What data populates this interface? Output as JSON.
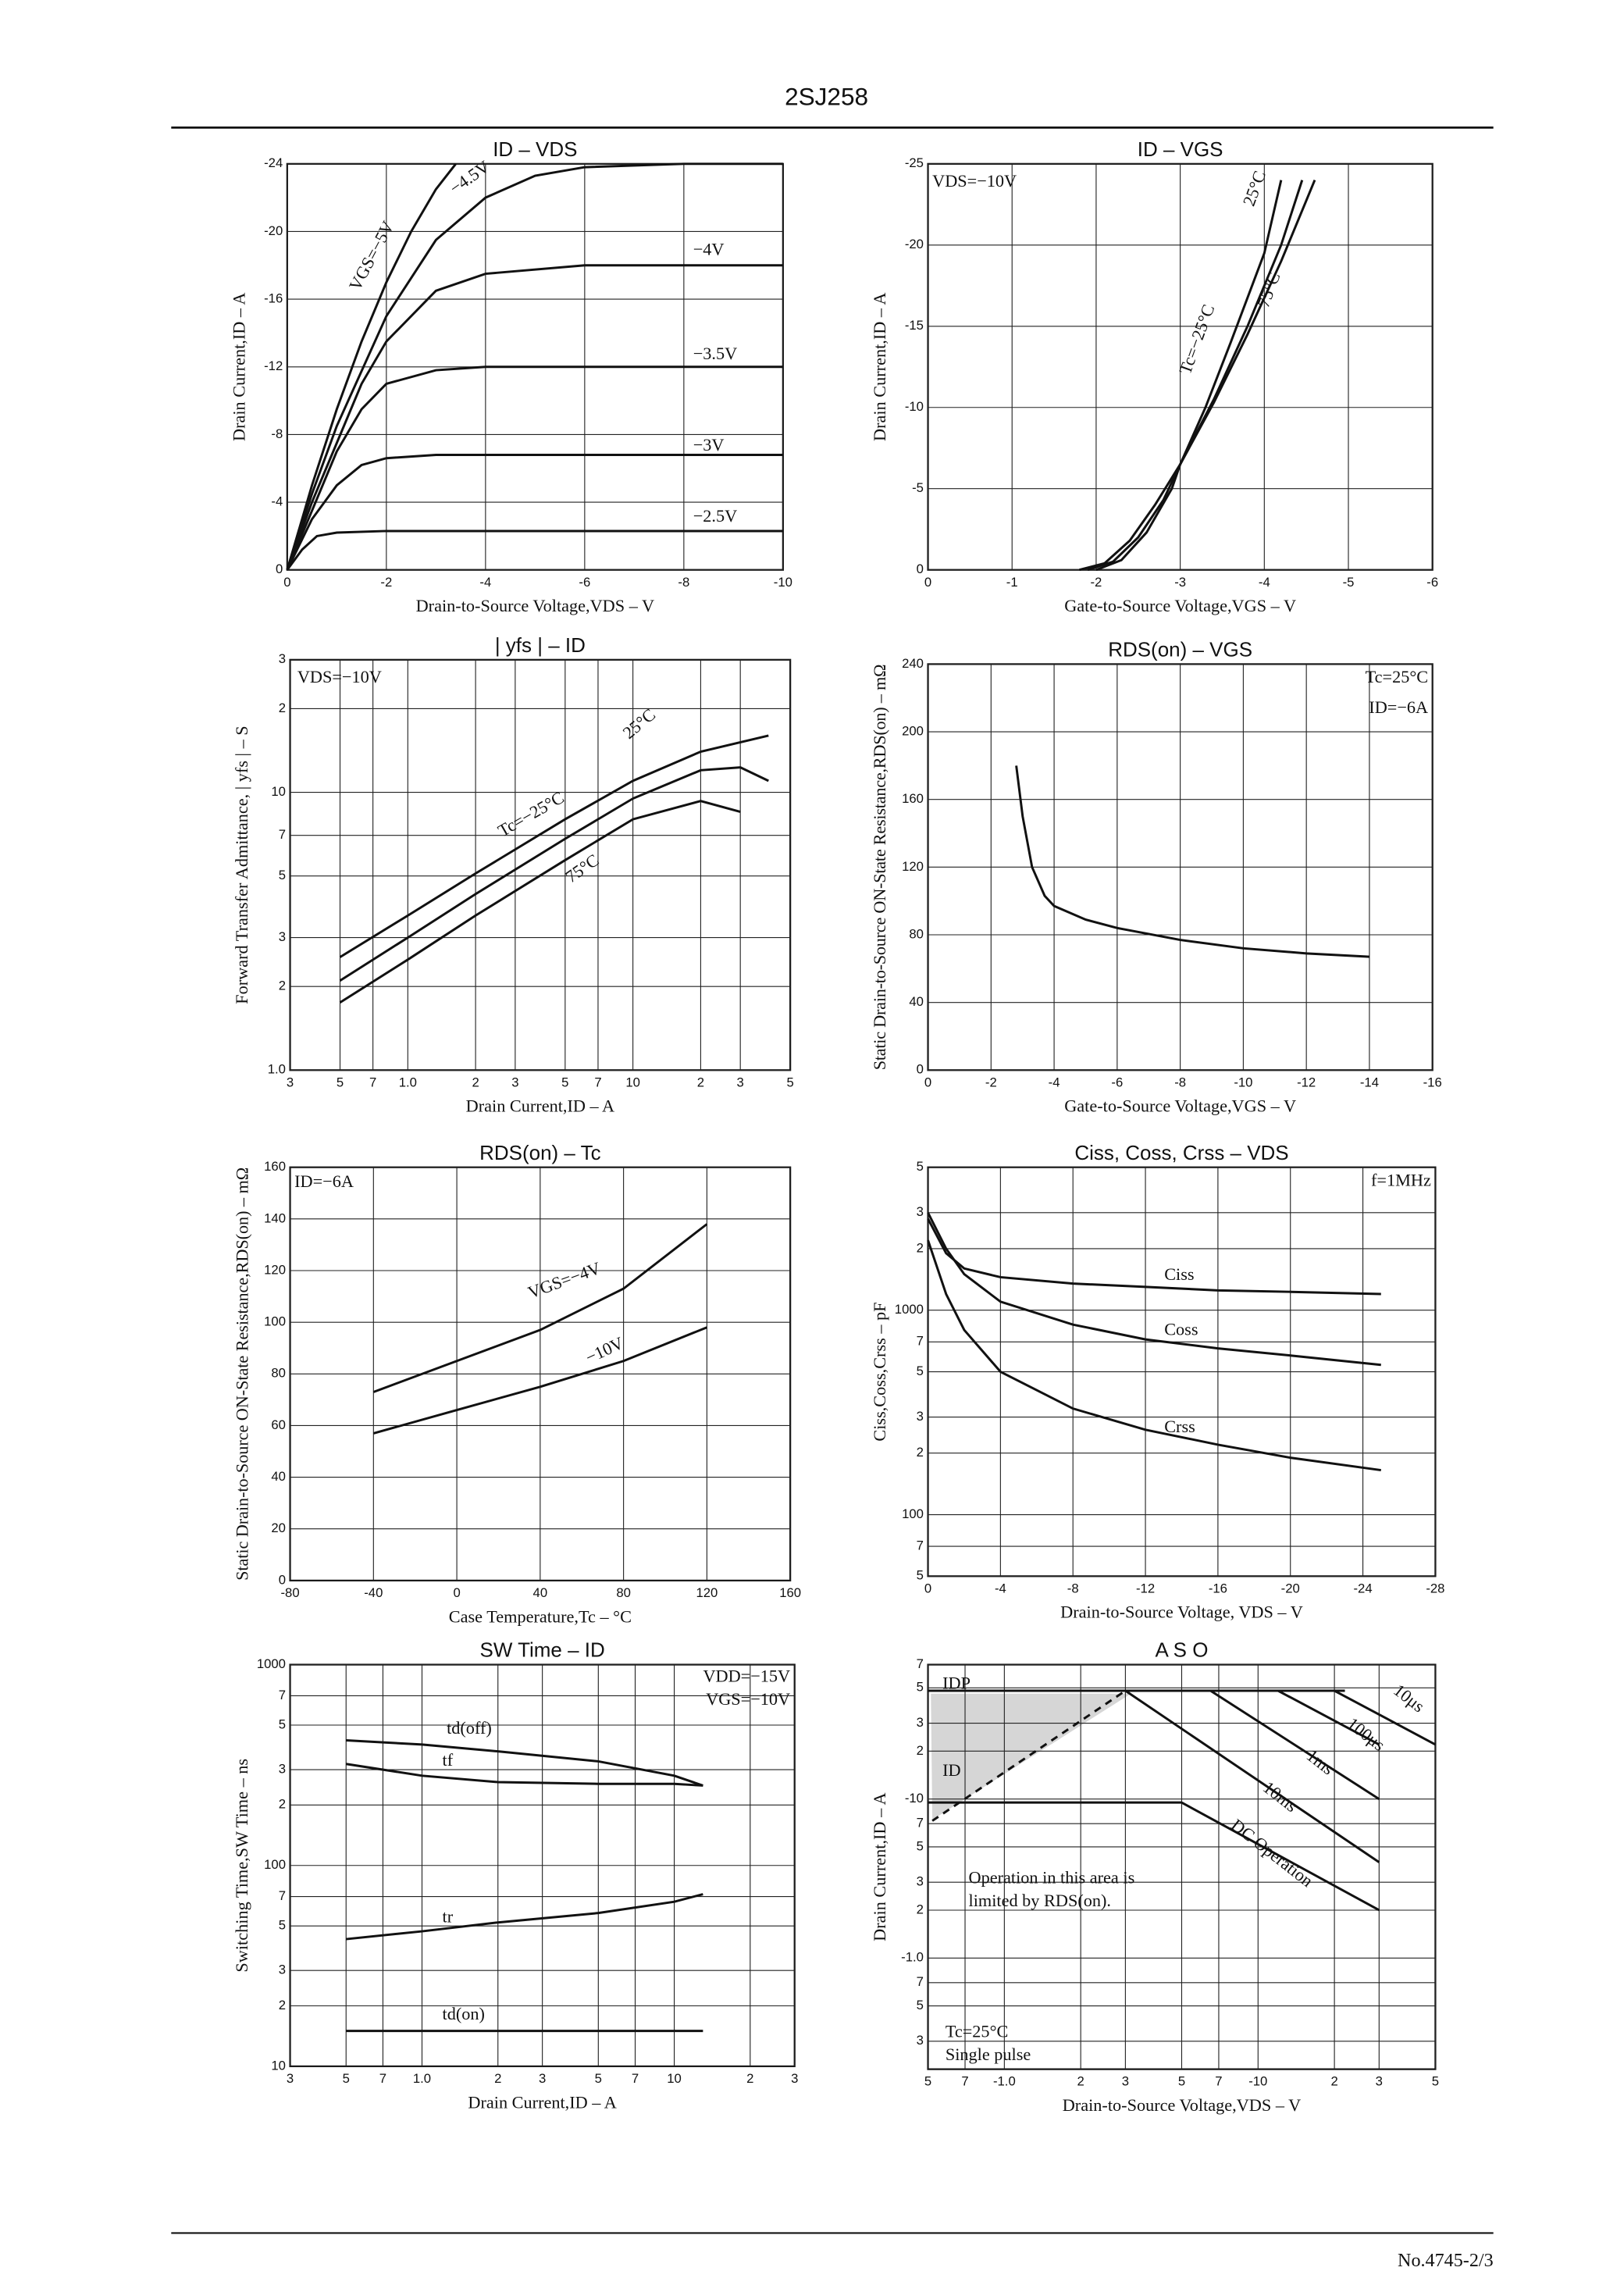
{
  "header": {
    "title": "2SJ258"
  },
  "footer": {
    "text": "No.4745-2/3"
  },
  "chart_data": [
    {
      "type": "line",
      "title": "ID – VDS",
      "xlabel": "Drain-to-Source Voltage,VDS – V",
      "ylabel": "Drain Current,ID – A",
      "color": "#111111",
      "grid": true,
      "xlim": [
        0,
        -10
      ],
      "xticks": [
        0,
        -2,
        -4,
        -6,
        -8,
        -10
      ],
      "ylim": [
        0,
        -24
      ],
      "yticks": [
        0,
        -4,
        -8,
        -12,
        -16,
        -20,
        -24
      ],
      "series": [
        {
          "name": "VGS=−5V",
          "x": [
            0,
            -0.5,
            -1,
            -1.5,
            -2,
            -2.5,
            -3,
            -3.4
          ],
          "values": [
            0,
            -5,
            -9.5,
            -13.5,
            -17,
            -20,
            -22.5,
            -24
          ]
        },
        {
          "name": "−4.5V",
          "x": [
            0,
            -0.5,
            -1,
            -2,
            -3,
            -4,
            -5,
            -6,
            -8,
            -10
          ],
          "values": [
            0,
            -4.5,
            -8.5,
            -15,
            -19.5,
            -22,
            -23.3,
            -23.8,
            -24,
            -24
          ]
        },
        {
          "name": "−4V",
          "x": [
            0,
            -0.5,
            -1,
            -1.5,
            -2,
            -3,
            -4,
            -6,
            -10
          ],
          "values": [
            0,
            -4,
            -7.5,
            -11,
            -13.5,
            -16.5,
            -17.5,
            -18,
            -18
          ]
        },
        {
          "name": "−3.5V",
          "x": [
            0,
            -0.5,
            -1,
            -1.5,
            -2,
            -3,
            -4,
            -10
          ],
          "values": [
            0,
            -3.5,
            -7,
            -9.5,
            -11,
            -11.8,
            -12,
            -12
          ]
        },
        {
          "name": "−3V",
          "x": [
            0,
            -0.5,
            -1,
            -1.5,
            -2,
            -3,
            -10
          ],
          "values": [
            0,
            -3,
            -5,
            -6.2,
            -6.6,
            -6.8,
            -6.8
          ]
        },
        {
          "name": "−2.5V",
          "x": [
            0,
            -0.3,
            -0.6,
            -1,
            -2,
            -10
          ],
          "values": [
            0,
            -1.2,
            -2,
            -2.2,
            -2.3,
            -2.3
          ]
        }
      ]
    },
    {
      "type": "line",
      "title": "ID – VGS",
      "xlabel": "Gate-to-Source Voltage,VGS – V",
      "ylabel": "Drain Current,ID – A",
      "color": "#111111",
      "grid": true,
      "annotations": [
        "VDS=−10V"
      ],
      "xlim": [
        0,
        -6
      ],
      "xticks": [
        0,
        -1,
        -2,
        -3,
        -4,
        -5,
        -6
      ],
      "ylim": [
        0,
        -25
      ],
      "yticks": [
        0,
        -5,
        -10,
        -15,
        -20,
        -25
      ],
      "series": [
        {
          "name": "Tc=−25°C",
          "x": [
            -2,
            -2.3,
            -2.6,
            -2.9,
            -3,
            -3.4,
            -3.8,
            -4.2,
            -4.45
          ],
          "values": [
            0,
            -0.6,
            -2.3,
            -5,
            -6.5,
            -10.5,
            -15,
            -20,
            -24
          ]
        },
        {
          "name": "25°C",
          "x": [
            -1.9,
            -2.2,
            -2.5,
            -2.8,
            -3,
            -3.3,
            -3.6,
            -4,
            -4.2
          ],
          "values": [
            0,
            -0.5,
            -2,
            -4.3,
            -6.5,
            -10,
            -14,
            -19.5,
            -24
          ]
        },
        {
          "name": "75°C",
          "x": [
            -1.8,
            -2.1,
            -2.4,
            -2.7,
            -3,
            -3.4,
            -3.8,
            -4.2,
            -4.6
          ],
          "values": [
            0,
            -0.4,
            -1.8,
            -4,
            -6.5,
            -10.3,
            -14.5,
            -19,
            -24
          ]
        }
      ]
    },
    {
      "type": "line",
      "title": "| yfs | – ID",
      "xlabel": "Drain Current,ID – A",
      "ylabel": "Forward Transfer Admittance, | yfs | – S",
      "color": "#111111",
      "grid": true,
      "xscale": "log",
      "yscale": "log",
      "annotations": [
        "VDS=−10V"
      ],
      "xlim": [
        0.3,
        50
      ],
      "xticks": [
        {
          "value": 0.3,
          "label": "3"
        },
        {
          "value": 0.5,
          "label": "5"
        },
        {
          "value": 0.7,
          "label": "7"
        },
        {
          "value": 1,
          "label": "1.0"
        },
        2,
        3,
        5,
        7,
        10,
        {
          "value": 20,
          "label": "2"
        },
        {
          "value": 30,
          "label": "3"
        },
        {
          "value": 50,
          "label": "5"
        }
      ],
      "ylim": [
        1,
        30
      ],
      "yticks": [
        {
          "value": 1,
          "label": "1.0"
        },
        2,
        3,
        5,
        7,
        10,
        {
          "value": 20,
          "label": "2"
        },
        {
          "value": 30,
          "label": "3"
        }
      ],
      "series": [
        {
          "name": "Tc=−25°C",
          "x": [
            0.5,
            1,
            2,
            5,
            10,
            20,
            40
          ],
          "values": [
            2.55,
            3.6,
            5.1,
            8,
            11,
            14,
            16
          ]
        },
        {
          "name": "25°C",
          "x": [
            0.5,
            1,
            2,
            5,
            10,
            20,
            30,
            40
          ],
          "values": [
            2.1,
            3,
            4.3,
            6.8,
            9.5,
            12,
            12.3,
            11
          ]
        },
        {
          "name": "75°C",
          "x": [
            0.5,
            1,
            2,
            5,
            10,
            20,
            30
          ],
          "values": [
            1.75,
            2.5,
            3.6,
            5.7,
            8,
            9.3,
            8.5
          ]
        }
      ]
    },
    {
      "type": "line",
      "title": "RDS(on) – VGS",
      "xlabel": "Gate-to-Source Voltage,VGS – V",
      "ylabel": "Static Drain-to-Source ON-State Resistance,RDS(on) – mΩ",
      "color": "#111111",
      "grid": true,
      "annotations": [
        "Tc=25°C",
        "ID=−6A"
      ],
      "xlim": [
        0,
        -16
      ],
      "xticks": [
        0,
        -2,
        -4,
        -6,
        -8,
        -10,
        -12,
        -14,
        -16
      ],
      "ylim": [
        0,
        240
      ],
      "yticks": [
        0,
        40,
        80,
        120,
        160,
        200,
        240
      ],
      "series": [
        {
          "x": [
            -2.8,
            -3,
            -3.3,
            -3.7,
            -4,
            -5,
            -6,
            -8,
            -10,
            -12,
            -14
          ],
          "values": [
            180,
            150,
            120,
            103,
            97,
            89,
            84,
            77,
            72,
            69,
            67
          ]
        }
      ]
    },
    {
      "type": "line",
      "title": "RDS(on) – Tc",
      "xlabel": "Case Temperature,Tc – °C",
      "ylabel": "Static Drain-to-Source ON-State Resistance,RDS(on) – mΩ",
      "color": "#111111",
      "grid": true,
      "annotations": [
        "ID=−6A"
      ],
      "xlim": [
        -80,
        160
      ],
      "xticks": [
        -80,
        -40,
        0,
        40,
        80,
        120,
        160
      ],
      "ylim": [
        0,
        160
      ],
      "yticks": [
        0,
        20,
        40,
        60,
        80,
        100,
        120,
        140,
        160
      ],
      "series": [
        {
          "name": "VGS=−4V",
          "x": [
            -40,
            0,
            40,
            80,
            120
          ],
          "values": [
            73,
            85,
            97,
            113,
            138
          ]
        },
        {
          "name": "−10V",
          "x": [
            -40,
            0,
            40,
            80,
            120
          ],
          "values": [
            57,
            66,
            75,
            85,
            98
          ]
        }
      ]
    },
    {
      "type": "line",
      "title": "Ciss, Coss, Crss – VDS",
      "xlabel": "Drain-to-Source Voltage, VDS – V",
      "ylabel": "Ciss,Coss,Crss – pF",
      "color": "#111111",
      "grid": true,
      "yscale": "log",
      "annotations": [
        "f=1MHz"
      ],
      "xlim": [
        0,
        -28
      ],
      "xticks": [
        0,
        -4,
        -8,
        -12,
        -16,
        -20,
        -24,
        -28
      ],
      "ylim": [
        50,
        5000
      ],
      "yticks": [
        {
          "value": 50,
          "label": "5"
        },
        {
          "value": 70,
          "label": "7"
        },
        100,
        {
          "value": 200,
          "label": "2"
        },
        {
          "value": 300,
          "label": "3"
        },
        {
          "value": 500,
          "label": "5"
        },
        {
          "value": 700,
          "label": "7"
        },
        1000,
        {
          "value": 2000,
          "label": "2"
        },
        {
          "value": 3000,
          "label": "3"
        },
        {
          "value": 5000,
          "label": "5"
        }
      ],
      "series": [
        {
          "name": "Ciss",
          "x": [
            0,
            -1,
            -2,
            -4,
            -8,
            -12,
            -16,
            -20,
            -25
          ],
          "values": [
            2800,
            1900,
            1600,
            1450,
            1350,
            1300,
            1250,
            1230,
            1200
          ]
        },
        {
          "name": "Coss",
          "x": [
            0,
            -1,
            -2,
            -4,
            -8,
            -12,
            -16,
            -20,
            -25
          ],
          "values": [
            3000,
            2000,
            1500,
            1100,
            850,
            720,
            650,
            600,
            540
          ]
        },
        {
          "name": "Crss",
          "x": [
            0,
            -1,
            -2,
            -4,
            -8,
            -12,
            -16,
            -20,
            -25
          ],
          "values": [
            2200,
            1200,
            800,
            500,
            330,
            260,
            220,
            190,
            165
          ]
        }
      ]
    },
    {
      "type": "line",
      "title": "SW Time – ID",
      "xlabel": "Drain Current,ID – A",
      "ylabel": "Switching Time,SW Time – ns",
      "color": "#111111",
      "grid": true,
      "xscale": "log",
      "yscale": "log",
      "annotations": [
        "VDD=−15V",
        "VGS=−10V"
      ],
      "xlim": [
        0.3,
        30
      ],
      "xticks": [
        {
          "value": 0.3,
          "label": "3"
        },
        {
          "value": 0.5,
          "label": "5"
        },
        {
          "value": 0.7,
          "label": "7"
        },
        {
          "value": 1,
          "label": "1.0"
        },
        2,
        3,
        5,
        7,
        10,
        {
          "value": 20,
          "label": "2"
        },
        {
          "value": 30,
          "label": "3"
        }
      ],
      "ylim": [
        10,
        1000
      ],
      "yticks": [
        10,
        {
          "value": 20,
          "label": "2"
        },
        {
          "value": 30,
          "label": "3"
        },
        {
          "value": 50,
          "label": "5"
        },
        {
          "value": 70,
          "label": "7"
        },
        100,
        {
          "value": 200,
          "label": "2"
        },
        {
          "value": 300,
          "label": "3"
        },
        {
          "value": 500,
          "label": "5"
        },
        {
          "value": 700,
          "label": "7"
        },
        1000
      ],
      "series": [
        {
          "name": "td(off)",
          "x": [
            0.5,
            1,
            2,
            5,
            10,
            13
          ],
          "values": [
            420,
            400,
            370,
            330,
            280,
            250
          ]
        },
        {
          "name": "tf",
          "x": [
            0.5,
            1,
            2,
            5,
            10,
            13
          ],
          "values": [
            320,
            280,
            260,
            255,
            255,
            250
          ]
        },
        {
          "name": "tr",
          "x": [
            0.5,
            1,
            2,
            5,
            10,
            13
          ],
          "values": [
            43,
            47,
            52,
            58,
            66,
            72
          ]
        },
        {
          "name": "td(on)",
          "x": [
            0.5,
            13
          ],
          "values": [
            15,
            15
          ]
        }
      ]
    },
    {
      "type": "line",
      "title": "A S O",
      "xlabel": "Drain-to-Source Voltage,VDS – V",
      "ylabel": "Drain Current,ID – A",
      "color": "#111111",
      "grid": true,
      "xscale": "log",
      "yscale": "log",
      "annotations": [
        "Operation in this area is",
        "limited by RDS(on).",
        "Tc=25°C",
        "Single pulse"
      ],
      "xlim": [
        -0.5,
        -50
      ],
      "xticks": [
        {
          "value": -0.5,
          "label": "5"
        },
        {
          "value": -0.7,
          "label": "7"
        },
        {
          "value": -1,
          "label": "-1.0"
        },
        {
          "value": -2,
          "label": "2"
        },
        {
          "value": -3,
          "label": "3"
        },
        {
          "value": -5,
          "label": "5"
        },
        {
          "value": -7,
          "label": "7"
        },
        -10,
        {
          "value": -20,
          "label": "2"
        },
        {
          "value": -30,
          "label": "3"
        },
        {
          "value": -50,
          "label": "5"
        }
      ],
      "ylim": [
        -0.2,
        -70
      ],
      "yticks": [
        {
          "value": -0.3,
          "label": "3"
        },
        {
          "value": -0.5,
          "label": "5"
        },
        {
          "value": -0.7,
          "label": "7"
        },
        {
          "value": -1,
          "label": "-1.0"
        },
        {
          "value": -2,
          "label": "2"
        },
        {
          "value": -3,
          "label": "3"
        },
        {
          "value": -5,
          "label": "5"
        },
        {
          "value": -7,
          "label": "7"
        },
        -10,
        {
          "value": -20,
          "label": "2"
        },
        {
          "value": -30,
          "label": "3"
        },
        {
          "value": -50,
          "label": "5"
        },
        {
          "value": -70,
          "label": "7"
        }
      ],
      "series": [
        {
          "name": "IDP",
          "x": [
            -0.5,
            -22
          ],
          "values": [
            -48,
            -48
          ]
        },
        {
          "name": "ID",
          "x": [
            -0.5,
            -5
          ],
          "values": [
            -9.5,
            -9.5
          ]
        },
        {
          "name": "10μs",
          "x": [
            -20,
            -50
          ],
          "values": [
            -48,
            -22
          ]
        },
        {
          "name": "100μs",
          "x": [
            -12,
            -30
          ],
          "values": [
            -48,
            -22
          ]
        },
        {
          "name": "1ms",
          "x": [
            -6.5,
            -30
          ],
          "values": [
            -48,
            -10
          ]
        },
        {
          "name": "10ms",
          "x": [
            -3,
            -30
          ],
          "values": [
            -48,
            -4
          ]
        },
        {
          "name": "DC Operation",
          "x": [
            -5,
            -30
          ],
          "values": [
            -9.5,
            -2
          ]
        },
        {
          "x": [
            -0.52,
            -3
          ],
          "values": [
            -7.3,
            -48
          ],
          "dash": true
        }
      ]
    }
  ]
}
